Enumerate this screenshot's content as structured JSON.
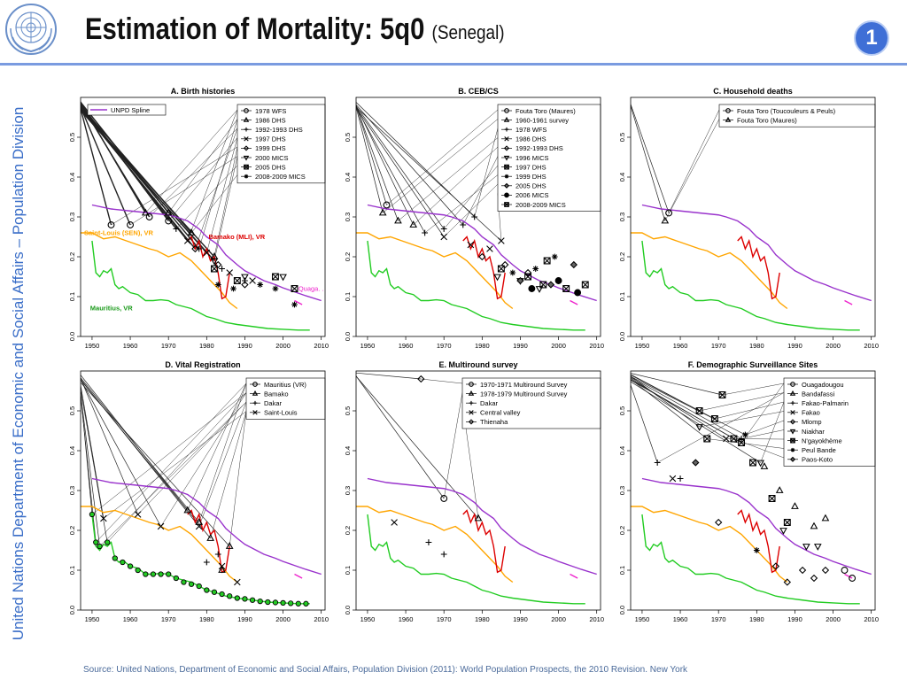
{
  "header": {
    "title": "Estimation of Mortality: 5q0",
    "subtitle": "(Senegal)",
    "slide_number": "1"
  },
  "sidebar": {
    "text": "United Nations Department of Economic and Social Affairs – Population Division"
  },
  "footer": {
    "source": "Source: United Nations, Department of Economic and Social Affairs, Population Division (2011): World Population Prospects, the 2010 Revision. New York"
  },
  "colors": {
    "accent": "#3f6fd6",
    "rule": "#7a9be0",
    "text_blue": "#3a6ec8",
    "unpd": "#9932cc",
    "saint_louis": "#ffa500",
    "bamako": "#dd0000",
    "mauritius": "#22cc22",
    "ouaga": "#ee22cc"
  },
  "chart_data": [
    {
      "type": "line",
      "title": "A. Birth histories",
      "xlim": [
        1947,
        2011
      ],
      "ylim": [
        0,
        0.6
      ],
      "x_ticks": [
        "1950",
        "1960",
        "1970",
        "1980",
        "1990",
        "2000",
        "2010"
      ],
      "y_ticks": [
        "0.0",
        "0.1",
        "0.2",
        "0.3",
        "0.4",
        "0.5"
      ],
      "legend": [
        "1978 WFS",
        "1986 DHS",
        "1992-1993 DHS",
        "1997 DHS",
        "1999 DHS",
        "2000 MICS",
        "2005 DHS",
        "2008-2009 MICS"
      ],
      "legend_markers": [
        "circle",
        "triangle",
        "plus",
        "x",
        "diamond",
        "tri_down",
        "square_x",
        "star"
      ],
      "legend_extra": "UNPD Spline",
      "series_labels": {
        "saint_louis": "Saint-Louis (SEN), VR",
        "bamako": "Bamako (MLI), VR",
        "mauritius": "Mauritius, VR",
        "ouaga": "Quaga. ."
      },
      "points": [
        {
          "m": 0,
          "x": 1955,
          "y": 0.28
        },
        {
          "m": 0,
          "x": 1960,
          "y": 0.28
        },
        {
          "m": 0,
          "x": 1965,
          "y": 0.3
        },
        {
          "m": 0,
          "x": 1970,
          "y": 0.29
        },
        {
          "m": 1,
          "x": 1964,
          "y": 0.31
        },
        {
          "m": 1,
          "x": 1970,
          "y": 0.31
        },
        {
          "m": 1,
          "x": 1976,
          "y": 0.26
        },
        {
          "m": 1,
          "x": 1982,
          "y": 0.2
        },
        {
          "m": 2,
          "x": 1972,
          "y": 0.27
        },
        {
          "m": 2,
          "x": 1978,
          "y": 0.22
        },
        {
          "m": 2,
          "x": 1984,
          "y": 0.17
        },
        {
          "m": 2,
          "x": 1990,
          "y": 0.14
        },
        {
          "m": 3,
          "x": 1975,
          "y": 0.24
        },
        {
          "m": 3,
          "x": 1980,
          "y": 0.21
        },
        {
          "m": 3,
          "x": 1986,
          "y": 0.16
        },
        {
          "m": 3,
          "x": 1992,
          "y": 0.14
        },
        {
          "m": 4,
          "x": 1977,
          "y": 0.22
        },
        {
          "m": 4,
          "x": 1983,
          "y": 0.18
        },
        {
          "m": 4,
          "x": 1990,
          "y": 0.13
        },
        {
          "m": 5,
          "x": 1982,
          "y": 0.19
        },
        {
          "m": 5,
          "x": 1990,
          "y": 0.15
        },
        {
          "m": 5,
          "x": 2000,
          "y": 0.15
        },
        {
          "m": 6,
          "x": 1982,
          "y": 0.17
        },
        {
          "m": 6,
          "x": 1988,
          "y": 0.14
        },
        {
          "m": 6,
          "x": 1998,
          "y": 0.15
        },
        {
          "m": 6,
          "x": 2003,
          "y": 0.12
        },
        {
          "m": 7,
          "x": 1983,
          "y": 0.13
        },
        {
          "m": 7,
          "x": 1987,
          "y": 0.12
        },
        {
          "m": 7,
          "x": 1994,
          "y": 0.13
        },
        {
          "m": 7,
          "x": 1998,
          "y": 0.12
        },
        {
          "m": 7,
          "x": 2003,
          "y": 0.08
        }
      ],
      "fan_target_count": 14
    },
    {
      "type": "line",
      "title": "B. CEB/CS",
      "xlim": [
        1947,
        2011
      ],
      "ylim": [
        0,
        0.6
      ],
      "x_ticks": [
        "1950",
        "1960",
        "1970",
        "1980",
        "1990",
        "2000",
        "2010"
      ],
      "y_ticks": [
        "0.0",
        "0.1",
        "0.2",
        "0.3",
        "0.4",
        "0.5"
      ],
      "legend": [
        "Fouta Toro (Maures)",
        "1960-1961 survey",
        "1978 WFS",
        "1986 DHS",
        "1992-1993 DHS",
        "1996 MICS",
        "1997 DHS",
        "1999 DHS",
        "2005 DHS",
        "2006 MICS",
        "2008-2009 MICS"
      ],
      "legend_markers": [
        "circle",
        "triangle",
        "plus",
        "x",
        "diamond",
        "tri_down",
        "square_x",
        "star",
        "diamond_f",
        "circle_f",
        "square_x"
      ],
      "points": [
        {
          "m": 0,
          "x": 1955,
          "y": 0.33
        },
        {
          "m": 1,
          "x": 1954,
          "y": 0.31
        },
        {
          "m": 1,
          "x": 1958,
          "y": 0.29
        },
        {
          "m": 1,
          "x": 1962,
          "y": 0.28
        },
        {
          "m": 2,
          "x": 1965,
          "y": 0.26
        },
        {
          "m": 2,
          "x": 1970,
          "y": 0.27
        },
        {
          "m": 2,
          "x": 1975,
          "y": 0.28
        },
        {
          "m": 2,
          "x": 1978,
          "y": 0.3
        },
        {
          "m": 3,
          "x": 1970,
          "y": 0.25
        },
        {
          "m": 3,
          "x": 1977,
          "y": 0.23
        },
        {
          "m": 3,
          "x": 1982,
          "y": 0.22
        },
        {
          "m": 3,
          "x": 1985,
          "y": 0.24
        },
        {
          "m": 4,
          "x": 1980,
          "y": 0.2
        },
        {
          "m": 4,
          "x": 1986,
          "y": 0.18
        },
        {
          "m": 4,
          "x": 1992,
          "y": 0.16
        },
        {
          "m": 5,
          "x": 1984,
          "y": 0.15
        },
        {
          "m": 5,
          "x": 1990,
          "y": 0.14
        },
        {
          "m": 5,
          "x": 1995,
          "y": 0.12
        },
        {
          "m": 6,
          "x": 1985,
          "y": 0.17
        },
        {
          "m": 6,
          "x": 1992,
          "y": 0.15
        },
        {
          "m": 6,
          "x": 1997,
          "y": 0.19
        },
        {
          "m": 7,
          "x": 1988,
          "y": 0.16
        },
        {
          "m": 7,
          "x": 1994,
          "y": 0.17
        },
        {
          "m": 7,
          "x": 1999,
          "y": 0.2
        },
        {
          "m": 8,
          "x": 1990,
          "y": 0.14
        },
        {
          "m": 8,
          "x": 1998,
          "y": 0.13
        },
        {
          "m": 8,
          "x": 2004,
          "y": 0.18
        },
        {
          "m": 9,
          "x": 1993,
          "y": 0.12
        },
        {
          "m": 9,
          "x": 2000,
          "y": 0.14
        },
        {
          "m": 9,
          "x": 2005,
          "y": 0.11
        },
        {
          "m": 10,
          "x": 1996,
          "y": 0.13
        },
        {
          "m": 10,
          "x": 2002,
          "y": 0.12
        },
        {
          "m": 10,
          "x": 2007,
          "y": 0.13
        }
      ],
      "fan_target_count": 10
    },
    {
      "type": "line",
      "title": "C. Household deaths",
      "xlim": [
        1947,
        2011
      ],
      "ylim": [
        0,
        0.6
      ],
      "x_ticks": [
        "1950",
        "1960",
        "1970",
        "1980",
        "1990",
        "2000",
        "2010"
      ],
      "y_ticks": [
        "0.0",
        "0.1",
        "0.2",
        "0.3",
        "0.4",
        "0.5"
      ],
      "legend": [
        "Fouta Toro (Toucouleurs & Peuls)",
        "Fouta Toro (Maures)"
      ],
      "legend_markers": [
        "circle",
        "triangle"
      ],
      "points": [
        {
          "m": 0,
          "x": 1957,
          "y": 0.31
        },
        {
          "m": 1,
          "x": 1956,
          "y": 0.29
        }
      ],
      "fan_target_count": 2
    },
    {
      "type": "line",
      "title": "D. Vital Registration",
      "xlim": [
        1947,
        2011
      ],
      "ylim": [
        0,
        0.6
      ],
      "x_ticks": [
        "1950",
        "1960",
        "1970",
        "1980",
        "1990",
        "2000",
        "2010"
      ],
      "y_ticks": [
        "0.0",
        "0.1",
        "0.2",
        "0.3",
        "0.4",
        "0.5"
      ],
      "legend": [
        "Mauritius (VR)",
        "Bamako",
        "Dakar",
        "Saint-Louis"
      ],
      "legend_markers": [
        "circle",
        "triangle",
        "plus",
        "x"
      ],
      "points": [
        {
          "m": 0,
          "x": 1950,
          "y": 0.24
        },
        {
          "m": 0,
          "x": 1951,
          "y": 0.17
        },
        {
          "m": 0,
          "x": 1952,
          "y": 0.16
        },
        {
          "m": 0,
          "x": 1954,
          "y": 0.17
        },
        {
          "m": 0,
          "x": 1956,
          "y": 0.13
        },
        {
          "m": 0,
          "x": 1958,
          "y": 0.12
        },
        {
          "m": 0,
          "x": 1960,
          "y": 0.11
        },
        {
          "m": 0,
          "x": 1962,
          "y": 0.1
        },
        {
          "m": 0,
          "x": 1964,
          "y": 0.09
        },
        {
          "m": 0,
          "x": 1966,
          "y": 0.09
        },
        {
          "m": 0,
          "x": 1968,
          "y": 0.09
        },
        {
          "m": 0,
          "x": 1970,
          "y": 0.09
        },
        {
          "m": 0,
          "x": 1972,
          "y": 0.08
        },
        {
          "m": 0,
          "x": 1974,
          "y": 0.07
        },
        {
          "m": 0,
          "x": 1976,
          "y": 0.065
        },
        {
          "m": 0,
          "x": 1978,
          "y": 0.06
        },
        {
          "m": 0,
          "x": 1980,
          "y": 0.05
        },
        {
          "m": 0,
          "x": 1982,
          "y": 0.045
        },
        {
          "m": 0,
          "x": 1984,
          "y": 0.04
        },
        {
          "m": 0,
          "x": 1986,
          "y": 0.035
        },
        {
          "m": 0,
          "x": 1988,
          "y": 0.03
        },
        {
          "m": 0,
          "x": 1990,
          "y": 0.028
        },
        {
          "m": 0,
          "x": 1992,
          "y": 0.025
        },
        {
          "m": 0,
          "x": 1994,
          "y": 0.022
        },
        {
          "m": 0,
          "x": 1996,
          "y": 0.02
        },
        {
          "m": 0,
          "x": 1998,
          "y": 0.019
        },
        {
          "m": 0,
          "x": 2000,
          "y": 0.018
        },
        {
          "m": 0,
          "x": 2002,
          "y": 0.017
        },
        {
          "m": 0,
          "x": 2004,
          "y": 0.016
        },
        {
          "m": 0,
          "x": 2006,
          "y": 0.016
        },
        {
          "m": 1,
          "x": 1975,
          "y": 0.25
        },
        {
          "m": 1,
          "x": 1978,
          "y": 0.22
        },
        {
          "m": 1,
          "x": 1981,
          "y": 0.18
        },
        {
          "m": 1,
          "x": 1984,
          "y": 0.1
        },
        {
          "m": 1,
          "x": 1986,
          "y": 0.16
        },
        {
          "m": 2,
          "x": 1980,
          "y": 0.12
        },
        {
          "m": 2,
          "x": 1983,
          "y": 0.14
        },
        {
          "m": 3,
          "x": 1953,
          "y": 0.23
        },
        {
          "m": 3,
          "x": 1962,
          "y": 0.24
        },
        {
          "m": 3,
          "x": 1968,
          "y": 0.21
        },
        {
          "m": 3,
          "x": 1978,
          "y": 0.21
        },
        {
          "m": 3,
          "x": 1984,
          "y": 0.11
        },
        {
          "m": 3,
          "x": 1988,
          "y": 0.07
        }
      ],
      "fan_target_count": 12
    },
    {
      "type": "line",
      "title": "E. Multiround survey",
      "xlim": [
        1947,
        2011
      ],
      "ylim": [
        0,
        0.6
      ],
      "x_ticks": [
        "1950",
        "1960",
        "1970",
        "1980",
        "1990",
        "2000",
        "2010"
      ],
      "y_ticks": [
        "0.0",
        "0.1",
        "0.2",
        "0.3",
        "0.4",
        "0.5"
      ],
      "legend": [
        "1970-1971 Multiround Survey",
        "1978-1979 Multiround Survey",
        "Dakar",
        "Central valley",
        "Thienaha"
      ],
      "legend_markers": [
        "circle",
        "triangle",
        "plus",
        "x",
        "diamond"
      ],
      "points": [
        {
          "m": 0,
          "x": 1970,
          "y": 0.28
        },
        {
          "m": 1,
          "x": 1979,
          "y": 0.23
        },
        {
          "m": 2,
          "x": 1966,
          "y": 0.17
        },
        {
          "m": 2,
          "x": 1970,
          "y": 0.14
        },
        {
          "m": 3,
          "x": 1957,
          "y": 0.22
        },
        {
          "m": 4,
          "x": 1964,
          "y": 0.58
        }
      ],
      "fan_target_count": 3
    },
    {
      "type": "line",
      "title": "F. Demographic Surveillance Sites",
      "xlim": [
        1947,
        2011
      ],
      "ylim": [
        0,
        0.6
      ],
      "x_ticks": [
        "1950",
        "1960",
        "1970",
        "1980",
        "1990",
        "2000",
        "2010"
      ],
      "y_ticks": [
        "0.0",
        "0.1",
        "0.2",
        "0.3",
        "0.4",
        "0.5"
      ],
      "legend": [
        "Ouagadougou",
        "Bandafassi",
        "Fakao-Palmarin",
        "Fakao",
        "Mlomp",
        "Niakhar",
        "N'gayokhème",
        "Peul Bande",
        "Paos-Koto"
      ],
      "legend_markers": [
        "circle",
        "triangle",
        "plus",
        "x",
        "diamond",
        "tri_down",
        "square_x",
        "star",
        "diamond_f"
      ],
      "points": [
        {
          "m": 0,
          "x": 2003,
          "y": 0.1
        },
        {
          "m": 0,
          "x": 2005,
          "y": 0.08
        },
        {
          "m": 1,
          "x": 1982,
          "y": 0.36
        },
        {
          "m": 1,
          "x": 1986,
          "y": 0.3
        },
        {
          "m": 1,
          "x": 1990,
          "y": 0.26
        },
        {
          "m": 1,
          "x": 1995,
          "y": 0.21
        },
        {
          "m": 1,
          "x": 1998,
          "y": 0.23
        },
        {
          "m": 2,
          "x": 1954,
          "y": 0.37
        },
        {
          "m": 2,
          "x": 1960,
          "y": 0.33
        },
        {
          "m": 2,
          "x": 1976,
          "y": 0.43
        },
        {
          "m": 3,
          "x": 1958,
          "y": 0.33
        },
        {
          "m": 3,
          "x": 1972,
          "y": 0.43
        },
        {
          "m": 4,
          "x": 1970,
          "y": 0.22
        },
        {
          "m": 4,
          "x": 1985,
          "y": 0.11
        },
        {
          "m": 4,
          "x": 1988,
          "y": 0.07
        },
        {
          "m": 4,
          "x": 1992,
          "y": 0.1
        },
        {
          "m": 4,
          "x": 1995,
          "y": 0.08
        },
        {
          "m": 4,
          "x": 1998,
          "y": 0.1
        },
        {
          "m": 5,
          "x": 1965,
          "y": 0.46
        },
        {
          "m": 5,
          "x": 1981,
          "y": 0.37
        },
        {
          "m": 5,
          "x": 1987,
          "y": 0.2
        },
        {
          "m": 5,
          "x": 1993,
          "y": 0.16
        },
        {
          "m": 5,
          "x": 1996,
          "y": 0.16
        },
        {
          "m": 6,
          "x": 1965,
          "y": 0.5
        },
        {
          "m": 6,
          "x": 1967,
          "y": 0.43
        },
        {
          "m": 6,
          "x": 1969,
          "y": 0.48
        },
        {
          "m": 6,
          "x": 1971,
          "y": 0.54
        },
        {
          "m": 6,
          "x": 1974,
          "y": 0.43
        },
        {
          "m": 6,
          "x": 1976,
          "y": 0.42
        },
        {
          "m": 6,
          "x": 1979,
          "y": 0.37
        },
        {
          "m": 6,
          "x": 1984,
          "y": 0.28
        },
        {
          "m": 6,
          "x": 1988,
          "y": 0.22
        },
        {
          "m": 7,
          "x": 1977,
          "y": 0.44
        },
        {
          "m": 7,
          "x": 1980,
          "y": 0.15
        },
        {
          "m": 8,
          "x": 1964,
          "y": 0.37
        }
      ],
      "fan_target_count": 12
    }
  ]
}
